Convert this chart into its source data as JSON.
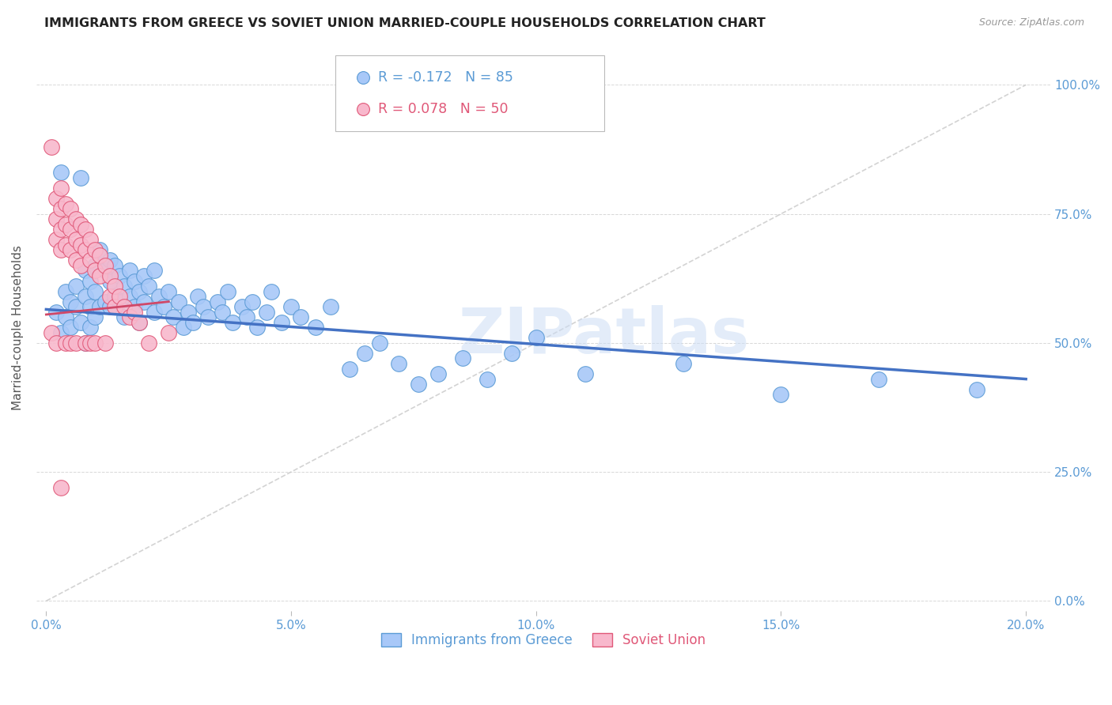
{
  "title": "IMMIGRANTS FROM GREECE VS SOVIET UNION MARRIED-COUPLE HOUSEHOLDS CORRELATION CHART",
  "source": "Source: ZipAtlas.com",
  "ylabel_label": "Married-couple Households",
  "greece_color": "#a8c8f8",
  "greece_edge_color": "#5b9bd5",
  "soviet_color": "#f8b8cc",
  "soviet_edge_color": "#e05878",
  "greece_R": -0.172,
  "greece_N": 85,
  "soviet_R": 0.078,
  "soviet_N": 50,
  "greece_line_color": "#4472c4",
  "soviet_line_color": "#d04868",
  "diag_line_color": "#c8c8c8",
  "legend_label_greece": "Immigrants from Greece",
  "legend_label_soviet": "Soviet Union",
  "watermark": "ZIPatlas",
  "tick_color": "#5b9bd5",
  "ylabel_color": "#555555",
  "title_color": "#222222",
  "source_color": "#999999",
  "grid_color": "#d8d8d8",
  "xlim": [
    -0.002,
    0.205
  ],
  "ylim": [
    -0.02,
    1.08
  ],
  "xticks": [
    0.0,
    0.05,
    0.1,
    0.15,
    0.2
  ],
  "yticks": [
    0.0,
    0.25,
    0.5,
    0.75,
    1.0
  ],
  "greece_x": [
    0.002,
    0.003,
    0.003,
    0.004,
    0.004,
    0.005,
    0.005,
    0.006,
    0.006,
    0.007,
    0.007,
    0.008,
    0.008,
    0.008,
    0.009,
    0.009,
    0.009,
    0.01,
    0.01,
    0.01,
    0.011,
    0.011,
    0.012,
    0.012,
    0.013,
    0.013,
    0.013,
    0.014,
    0.014,
    0.015,
    0.015,
    0.016,
    0.016,
    0.017,
    0.017,
    0.018,
    0.018,
    0.019,
    0.019,
    0.02,
    0.02,
    0.021,
    0.022,
    0.022,
    0.023,
    0.024,
    0.025,
    0.026,
    0.027,
    0.028,
    0.029,
    0.03,
    0.031,
    0.032,
    0.033,
    0.035,
    0.036,
    0.037,
    0.038,
    0.04,
    0.041,
    0.042,
    0.043,
    0.045,
    0.046,
    0.048,
    0.05,
    0.052,
    0.055,
    0.058,
    0.062,
    0.065,
    0.068,
    0.072,
    0.076,
    0.08,
    0.085,
    0.09,
    0.095,
    0.1,
    0.11,
    0.13,
    0.15,
    0.17,
    0.19
  ],
  "greece_y": [
    0.56,
    0.83,
    0.52,
    0.6,
    0.55,
    0.58,
    0.53,
    0.61,
    0.57,
    0.82,
    0.54,
    0.64,
    0.59,
    0.5,
    0.62,
    0.57,
    0.53,
    0.65,
    0.6,
    0.55,
    0.68,
    0.57,
    0.64,
    0.58,
    0.66,
    0.62,
    0.57,
    0.65,
    0.59,
    0.63,
    0.58,
    0.61,
    0.55,
    0.64,
    0.59,
    0.62,
    0.57,
    0.6,
    0.54,
    0.63,
    0.58,
    0.61,
    0.56,
    0.64,
    0.59,
    0.57,
    0.6,
    0.55,
    0.58,
    0.53,
    0.56,
    0.54,
    0.59,
    0.57,
    0.55,
    0.58,
    0.56,
    0.6,
    0.54,
    0.57,
    0.55,
    0.58,
    0.53,
    0.56,
    0.6,
    0.54,
    0.57,
    0.55,
    0.53,
    0.57,
    0.45,
    0.48,
    0.5,
    0.46,
    0.42,
    0.44,
    0.47,
    0.43,
    0.48,
    0.51,
    0.44,
    0.46,
    0.4,
    0.43,
    0.41
  ],
  "soviet_x": [
    0.001,
    0.001,
    0.002,
    0.002,
    0.002,
    0.002,
    0.003,
    0.003,
    0.003,
    0.003,
    0.003,
    0.004,
    0.004,
    0.004,
    0.004,
    0.005,
    0.005,
    0.005,
    0.005,
    0.006,
    0.006,
    0.006,
    0.006,
    0.007,
    0.007,
    0.007,
    0.008,
    0.008,
    0.008,
    0.009,
    0.009,
    0.009,
    0.01,
    0.01,
    0.01,
    0.011,
    0.011,
    0.012,
    0.012,
    0.013,
    0.013,
    0.014,
    0.014,
    0.015,
    0.016,
    0.017,
    0.018,
    0.019,
    0.021,
    0.025
  ],
  "soviet_y": [
    0.88,
    0.52,
    0.78,
    0.74,
    0.7,
    0.5,
    0.8,
    0.76,
    0.72,
    0.68,
    0.22,
    0.77,
    0.73,
    0.69,
    0.5,
    0.76,
    0.72,
    0.68,
    0.5,
    0.74,
    0.7,
    0.66,
    0.5,
    0.73,
    0.69,
    0.65,
    0.72,
    0.68,
    0.5,
    0.7,
    0.66,
    0.5,
    0.68,
    0.64,
    0.5,
    0.67,
    0.63,
    0.65,
    0.5,
    0.63,
    0.59,
    0.61,
    0.57,
    0.59,
    0.57,
    0.55,
    0.56,
    0.54,
    0.5,
    0.52
  ]
}
